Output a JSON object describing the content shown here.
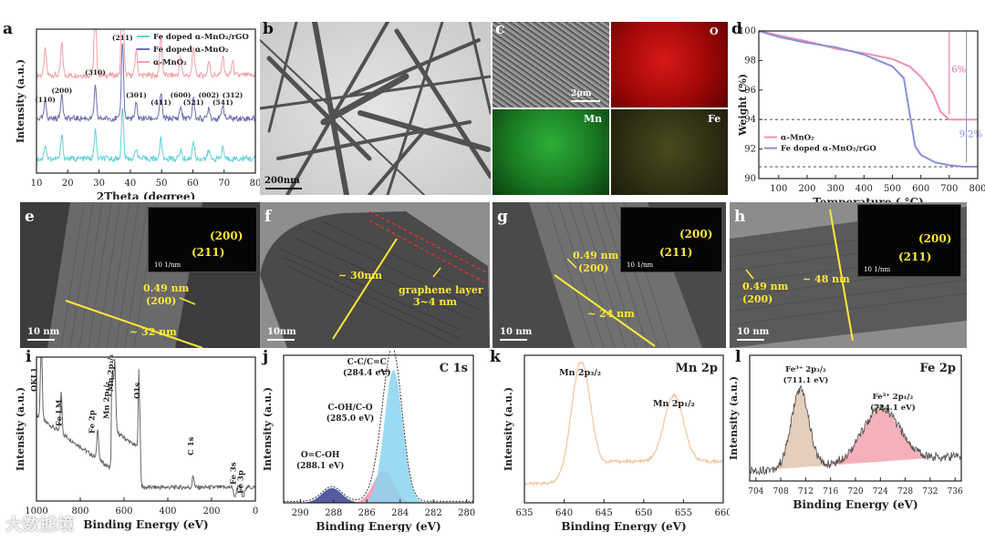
{
  "panels": {
    "a": {
      "label": "a"
    },
    "b": {
      "label": "b",
      "scale": "200nm"
    },
    "c": {
      "label": "c",
      "scale": "2μm",
      "maps": [
        "O",
        "Mn",
        "Fe"
      ]
    },
    "d": {
      "label": "d"
    },
    "e": {
      "label": "e",
      "fft_200": "(200)",
      "fft_211": "(211)",
      "fft_scale": "10 1/nm",
      "spacing": "0.49 nm",
      "spacing_plane": "(200)",
      "width": "~ 32 nm",
      "scale": "10 nm"
    },
    "f": {
      "label": "f",
      "width": "~ 30nm",
      "note_line1": "graphene layer",
      "note_line2": "3~4 nm",
      "scale": "10nm"
    },
    "g": {
      "label": "g",
      "fft_200": "(200)",
      "fft_211": "(211)",
      "fft_scale": "10 1/nm",
      "spacing": "0.49 nm",
      "spacing_plane": "(200)",
      "width": "~ 24 nm",
      "scale": "10 nm"
    },
    "h": {
      "label": "h",
      "fft_200": "(200)",
      "fft_211": "(211)",
      "fft_scale": "10 1/nm",
      "spacing": "0.49 nm",
      "spacing_plane": "(200)",
      "width": "~ 48 nm",
      "scale": "10 nm"
    },
    "i": {
      "label": "i"
    },
    "j": {
      "label": "j"
    },
    "k": {
      "label": "k"
    },
    "l": {
      "label": "l"
    }
  },
  "chart_data": [
    {
      "id": "a",
      "type": "line",
      "title": "",
      "xlabel": "2Theta (degree)",
      "ylabel": "Intensity (a.u.)",
      "xlim": [
        10,
        80
      ],
      "xticks": [
        10,
        20,
        30,
        40,
        50,
        60,
        70,
        80
      ],
      "legend": [
        "Fe doped α-MnO₂/rGO",
        "Fe doped α-MnO₂",
        "α-MnO₂"
      ],
      "legend_colors": [
        "#5fd3d8",
        "#6b6fb3",
        "#f3a0a8"
      ],
      "peak_labels": [
        {
          "text": "(110)",
          "x": 12.8
        },
        {
          "text": "(200)",
          "x": 18.1
        },
        {
          "text": "(310)",
          "x": 28.8
        },
        {
          "text": "(211)",
          "x": 37.5
        },
        {
          "text": "(301)",
          "x": 41.9
        },
        {
          "text": "(411)",
          "x": 49.8
        },
        {
          "text": "(600)",
          "x": 56.1
        },
        {
          "text": "(521)",
          "x": 60.2
        },
        {
          "text": "(002)",
          "x": 65.1
        },
        {
          "text": "(541)",
          "x": 69.6
        },
        {
          "text": "(312)",
          "x": 72.7
        }
      ],
      "series": [
        {
          "name": "α-MnO₂",
          "color": "#f3a0a8",
          "baseline": 0.66,
          "peaks": [
            [
              12.8,
              0.18
            ],
            [
              18.1,
              0.22
            ],
            [
              28.8,
              0.52
            ],
            [
              37.5,
              0.82
            ],
            [
              41.9,
              0.18
            ],
            [
              49.8,
              0.28
            ],
            [
              56.1,
              0.12
            ],
            [
              60.2,
              0.2
            ],
            [
              65.1,
              0.1
            ],
            [
              69.6,
              0.14
            ],
            [
              72.7,
              0.1
            ]
          ]
        },
        {
          "name": "Fe doped α-MnO₂",
          "color": "#6b6fb3",
          "baseline": 0.36,
          "peaks": [
            [
              12.8,
              0.12
            ],
            [
              18.1,
              0.18
            ],
            [
              28.8,
              0.22
            ],
            [
              37.5,
              0.55
            ],
            [
              41.9,
              0.1
            ],
            [
              49.8,
              0.18
            ],
            [
              56.1,
              0.08
            ],
            [
              60.2,
              0.14
            ],
            [
              65.1,
              0.08
            ],
            [
              69.6,
              0.1
            ]
          ]
        },
        {
          "name": "Fe doped α-MnO₂/rGO",
          "color": "#5fd3d8",
          "baseline": 0.08,
          "peaks": [
            [
              12.8,
              0.1
            ],
            [
              18.1,
              0.16
            ],
            [
              28.8,
              0.2
            ],
            [
              37.5,
              0.35
            ],
            [
              41.9,
              0.08
            ],
            [
              49.8,
              0.14
            ],
            [
              56.1,
              0.06
            ],
            [
              60.2,
              0.12
            ],
            [
              65.1,
              0.06
            ],
            [
              69.6,
              0.08
            ]
          ]
        }
      ]
    },
    {
      "id": "d",
      "type": "line",
      "title": "",
      "xlabel": "Temperature ( °C)",
      "ylabel": "Weight (%)",
      "xlim": [
        30,
        800
      ],
      "ylim": [
        90,
        100
      ],
      "xticks": [
        100,
        200,
        300,
        400,
        500,
        600,
        700,
        800
      ],
      "yticks": [
        90,
        92,
        94,
        96,
        98,
        100
      ],
      "legend": [
        "α-MnO₂",
        "Fe doped α-MnO₂/rGO"
      ],
      "annotations": [
        {
          "text": "6%",
          "color": "#e8709a"
        },
        {
          "text": "9.2%",
          "color": "#8c8fd6"
        }
      ],
      "series": [
        {
          "name": "α-MnO₂",
          "color": "#f48fb1",
          "x": [
            30,
            100,
            200,
            300,
            400,
            500,
            560,
            600,
            640,
            670,
            700,
            740,
            800
          ],
          "y": [
            100,
            99.7,
            99.3,
            98.8,
            98.5,
            98.1,
            97.6,
            96.9,
            95.9,
            94.5,
            94.0,
            94.0,
            94.0
          ]
        },
        {
          "name": "Fe doped α-MnO₂/rGO",
          "color": "#8c8fd6",
          "x": [
            30,
            100,
            200,
            300,
            400,
            500,
            540,
            560,
            580,
            600,
            650,
            700,
            750,
            800
          ],
          "y": [
            100,
            99.6,
            99.2,
            98.9,
            98.4,
            97.6,
            96.8,
            94.5,
            92.2,
            91.6,
            91.1,
            90.9,
            90.8,
            90.8
          ]
        }
      ]
    },
    {
      "id": "i",
      "type": "line",
      "title": "",
      "xlabel": "Binding Energy (eV)",
      "ylabel": "Intensity (a.u.)",
      "xlim": [
        1000,
        0
      ],
      "xticks": [
        1000,
        800,
        600,
        400,
        200,
        0
      ],
      "peak_labels": [
        "OKL1",
        "Fe LM",
        "Fe 2p",
        "Mn 2p₁/₂",
        "Mn 2p₃/₂",
        "O1s",
        "C 1s",
        "Fe 3s",
        "Fe 3p"
      ],
      "peaks": [
        [
          978,
          0.88
        ],
        [
          887,
          0.58
        ],
        [
          720,
          0.52
        ],
        [
          653,
          0.7
        ],
        [
          642,
          0.78
        ],
        [
          530,
          0.95
        ],
        [
          284,
          0.38
        ],
        [
          94,
          0.2
        ],
        [
          56,
          0.18
        ]
      ]
    },
    {
      "id": "j",
      "type": "area",
      "title": "C 1s",
      "xlabel": "Binding Energy (eV)",
      "ylabel": "Intensity (a.u.)",
      "xlim": [
        291,
        279.6
      ],
      "xticks": [
        290,
        288,
        286,
        284,
        282,
        280
      ],
      "components": [
        {
          "label": "O=C-OH (288.1 eV)",
          "center": 288.1,
          "height": 0.1,
          "color": "#3a3f8f"
        },
        {
          "label": "C-OH/C-O (285.0 eV)",
          "center": 285.0,
          "height": 0.22,
          "color": "#f48fb1"
        },
        {
          "label": "C-C/C=C (284.4 eV)",
          "center": 284.4,
          "height": 0.9,
          "color": "#8ad4f0"
        }
      ]
    },
    {
      "id": "k",
      "type": "line",
      "title": "Mn 2p",
      "xlabel": "Binding Energy (eV)",
      "ylabel": "Intensity (a.u.)",
      "xlim": [
        635,
        660
      ],
      "xticks": [
        635,
        640,
        645,
        650,
        655,
        660
      ],
      "peak_labels": [
        "Mn 2p₃/₂",
        "Mn 2p₁/₂"
      ],
      "peaks": [
        [
          642.1,
          0.82
        ],
        [
          653.8,
          0.45
        ]
      ]
    },
    {
      "id": "l",
      "type": "area",
      "title": "Fe 2p",
      "xlabel": "Binding Energy (eV)",
      "ylabel": "Intensity (a.u.)",
      "xlim": [
        703,
        737
      ],
      "xticks": [
        704,
        708,
        712,
        716,
        720,
        724,
        728,
        732,
        736
      ],
      "components": [
        {
          "label": "Fe³⁺ 2p₃/₂ (711.1 eV)",
          "center": 711.1,
          "height": 0.62,
          "color": "#e2c9b5"
        },
        {
          "label": "Fe³⁺ 2p₁/₂ (724.1 eV)",
          "center": 724.1,
          "height": 0.42,
          "color": "#f4a8b3"
        }
      ]
    }
  ],
  "watermark": "大数據境"
}
